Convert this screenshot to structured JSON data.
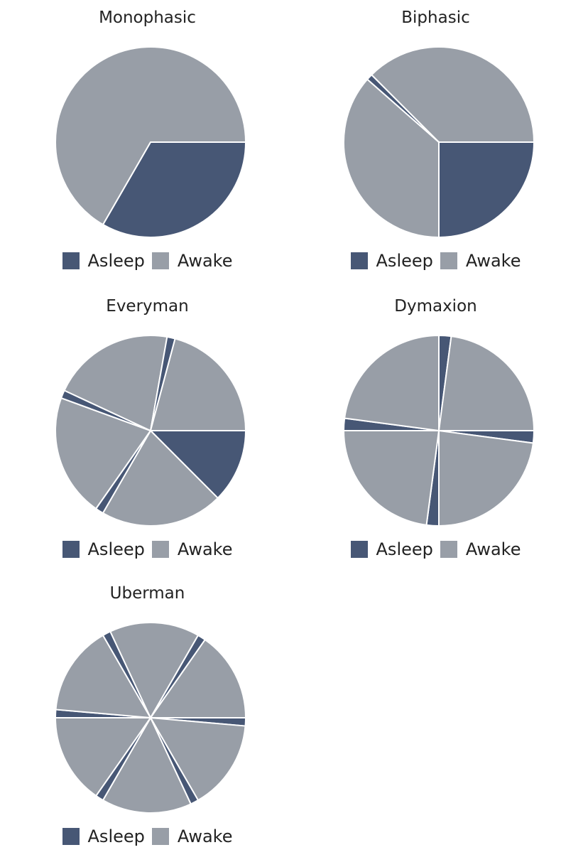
{
  "colors": {
    "asleep": "#475775",
    "awake": "#989ea7",
    "separator": "#ffffff"
  },
  "legend": {
    "asleep_label": "Asleep",
    "awake_label": "Awake"
  },
  "chart_data": [
    {
      "type": "pie",
      "title": "Monophasic",
      "slices": [
        {
          "label": "Asleep",
          "hours": 8
        },
        {
          "label": "Awake",
          "hours": 16
        }
      ]
    },
    {
      "type": "pie",
      "title": "Biphasic",
      "slices": [
        {
          "label": "Asleep",
          "hours": 6
        },
        {
          "label": "Awake",
          "hours": 8.75
        },
        {
          "label": "Asleep",
          "hours": 0.25
        },
        {
          "label": "Awake",
          "hours": 9
        }
      ]
    },
    {
      "type": "pie",
      "title": "Everyman",
      "slices": [
        {
          "label": "Asleep",
          "hours": 3
        },
        {
          "label": "Awake",
          "hours": 5
        },
        {
          "label": "Asleep",
          "hours": 0.33
        },
        {
          "label": "Awake",
          "hours": 5
        },
        {
          "label": "Asleep",
          "hours": 0.33
        },
        {
          "label": "Awake",
          "hours": 5
        },
        {
          "label": "Asleep",
          "hours": 0.33
        },
        {
          "label": "Awake",
          "hours": 5
        }
      ]
    },
    {
      "type": "pie",
      "title": "Dymaxion",
      "slices": [
        {
          "label": "Asleep",
          "hours": 0.5
        },
        {
          "label": "Awake",
          "hours": 5.5
        },
        {
          "label": "Asleep",
          "hours": 0.5
        },
        {
          "label": "Awake",
          "hours": 5.5
        },
        {
          "label": "Asleep",
          "hours": 0.5
        },
        {
          "label": "Awake",
          "hours": 5.5
        },
        {
          "label": "Asleep",
          "hours": 0.5
        },
        {
          "label": "Awake",
          "hours": 5.5
        }
      ]
    },
    {
      "type": "pie",
      "title": "Uberman",
      "slices": [
        {
          "label": "Asleep",
          "hours": 0.33
        },
        {
          "label": "Awake",
          "hours": 3.67
        },
        {
          "label": "Asleep",
          "hours": 0.33
        },
        {
          "label": "Awake",
          "hours": 3.67
        },
        {
          "label": "Asleep",
          "hours": 0.33
        },
        {
          "label": "Awake",
          "hours": 3.67
        },
        {
          "label": "Asleep",
          "hours": 0.33
        },
        {
          "label": "Awake",
          "hours": 3.67
        },
        {
          "label": "Asleep",
          "hours": 0.33
        },
        {
          "label": "Awake",
          "hours": 3.67
        },
        {
          "label": "Asleep",
          "hours": 0.33
        },
        {
          "label": "Awake",
          "hours": 3.67
        }
      ]
    }
  ]
}
